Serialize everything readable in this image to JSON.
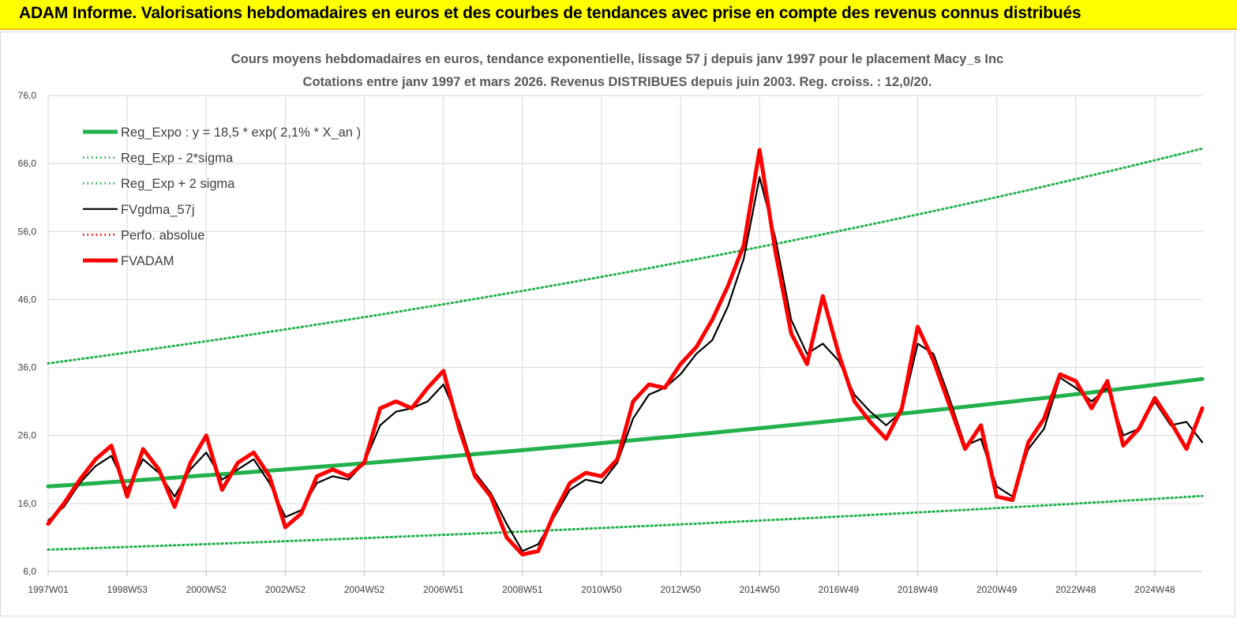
{
  "header": {
    "title": "ADAM Informe. Valorisations hebdomadaires en euros et des courbes de tendances avec prise en compte des revenus connus distribués",
    "background": "#ffff00"
  },
  "chart_data": {
    "type": "line",
    "title": "Cours moyens hebdomadaires en euros, tendance exponentielle, lissage 57 j depuis janv 1997 pour le placement Macy_s Inc",
    "subtitle": "Cotations entre janv 1997 et mars 2026. Revenus DISTRIBUES depuis juin 2003. Reg. croiss. : 12,0/20.",
    "xlabel": "",
    "ylabel": "",
    "ylim": [
      6,
      76
    ],
    "yticks": [
      "76,0",
      "66,0",
      "56,0",
      "46,0",
      "36,0",
      "26,0",
      "16,0",
      "6,0"
    ],
    "xlim": [
      1997.0,
      2026.2
    ],
    "xticks": [
      {
        "label": "1997W01",
        "t": 1997.0
      },
      {
        "label": "1998W53",
        "t": 1999.0
      },
      {
        "label": "2000W52",
        "t": 2001.0
      },
      {
        "label": "2002W52",
        "t": 2003.0
      },
      {
        "label": "2004W52",
        "t": 2005.0
      },
      {
        "label": "2006W51",
        "t": 2007.0
      },
      {
        "label": "2008W51",
        "t": 2009.0
      },
      {
        "label": "2010W50",
        "t": 2011.0
      },
      {
        "label": "2012W50",
        "t": 2013.0
      },
      {
        "label": "2014W50",
        "t": 2015.0
      },
      {
        "label": "2016W49",
        "t": 2017.0
      },
      {
        "label": "2018W49",
        "t": 2019.0
      },
      {
        "label": "2020W49",
        "t": 2021.0
      },
      {
        "label": "2022W48",
        "t": 2023.0
      },
      {
        "label": "2024W48",
        "t": 2025.0
      }
    ],
    "grid": true,
    "legend_position": "top-left",
    "series": [
      {
        "name": "Reg_Expo : y = 18,5 * exp( 2,1% *  X_an )",
        "color": "#22b14c",
        "style": "solid-thick",
        "x": [
          1997.0,
          2026.2
        ],
        "values": [
          18.5,
          34.3
        ]
      },
      {
        "name": "Reg_Exp - 2*sigma",
        "color": "#22b14c",
        "style": "dotted",
        "x": [
          1997.0,
          2026.2
        ],
        "values": [
          9.2,
          17.1
        ]
      },
      {
        "name": "Reg_Exp + 2 sigma",
        "color": "#22b14c",
        "style": "dotted",
        "x": [
          1997.0,
          2026.2
        ],
        "values": [
          36.6,
          68.2
        ]
      },
      {
        "name": "FVgdma_57j",
        "color": "#000000",
        "style": "solid",
        "x": [
          1997.0,
          1997.4,
          1997.8,
          1998.2,
          1998.6,
          1999.0,
          1999.4,
          1999.8,
          2000.2,
          2000.6,
          2001.0,
          2001.4,
          2001.8,
          2002.2,
          2002.6,
          2003.0,
          2003.4,
          2003.8,
          2004.2,
          2004.6,
          2005.0,
          2005.4,
          2005.8,
          2006.2,
          2006.6,
          2007.0,
          2007.4,
          2007.8,
          2008.2,
          2008.6,
          2009.0,
          2009.4,
          2009.8,
          2010.2,
          2010.6,
          2011.0,
          2011.4,
          2011.8,
          2012.2,
          2012.6,
          2013.0,
          2013.4,
          2013.8,
          2014.2,
          2014.6,
          2015.0,
          2015.4,
          2015.8,
          2016.2,
          2016.6,
          2017.0,
          2017.4,
          2017.8,
          2018.2,
          2018.6,
          2019.0,
          2019.4,
          2019.8,
          2020.2,
          2020.6,
          2021.0,
          2021.4,
          2021.8,
          2022.2,
          2022.6,
          2023.0,
          2023.4,
          2023.8,
          2024.2,
          2024.6,
          2025.0,
          2025.4,
          2025.8,
          2026.2
        ],
        "values": [
          13.5,
          15.5,
          19.0,
          21.5,
          23.0,
          18.0,
          22.5,
          20.5,
          17.0,
          21.0,
          23.5,
          19.5,
          21.0,
          22.5,
          19.0,
          14.0,
          15.0,
          19.0,
          20.0,
          19.5,
          22.0,
          27.5,
          29.5,
          30.0,
          31.0,
          33.5,
          28.0,
          20.5,
          17.5,
          13.0,
          9.0,
          10.0,
          14.0,
          18.0,
          19.5,
          19.0,
          22.0,
          28.5,
          32.0,
          33.0,
          35.0,
          38.0,
          40.0,
          45.0,
          52.0,
          64.0,
          55.0,
          43.0,
          38.0,
          39.5,
          37.0,
          32.0,
          29.5,
          27.5,
          29.5,
          39.5,
          38.0,
          31.5,
          24.5,
          25.5,
          18.5,
          17.0,
          24.0,
          27.0,
          34.5,
          33.0,
          31.0,
          33.0,
          26.0,
          27.0,
          31.0,
          27.5,
          28.0,
          25.0
        ]
      },
      {
        "name": "Perfo. absolue",
        "color": "#ff0000",
        "style": "dotted",
        "x": [],
        "values": []
      },
      {
        "name": "FVADAM",
        "color": "#ff0000",
        "style": "solid-thick",
        "x": [
          1997.0,
          1997.4,
          1997.8,
          1998.2,
          1998.6,
          1999.0,
          1999.4,
          1999.8,
          2000.2,
          2000.6,
          2001.0,
          2001.4,
          2001.8,
          2002.2,
          2002.6,
          2003.0,
          2003.4,
          2003.8,
          2004.2,
          2004.6,
          2005.0,
          2005.4,
          2005.8,
          2006.2,
          2006.6,
          2007.0,
          2007.4,
          2007.8,
          2008.2,
          2008.6,
          2009.0,
          2009.4,
          2009.8,
          2010.2,
          2010.6,
          2011.0,
          2011.4,
          2011.8,
          2012.2,
          2012.6,
          2013.0,
          2013.4,
          2013.8,
          2014.2,
          2014.6,
          2015.0,
          2015.4,
          2015.8,
          2016.2,
          2016.6,
          2017.0,
          2017.4,
          2017.8,
          2018.2,
          2018.6,
          2019.0,
          2019.4,
          2019.8,
          2020.2,
          2020.6,
          2021.0,
          2021.4,
          2021.8,
          2022.2,
          2022.6,
          2023.0,
          2023.4,
          2023.8,
          2024.2,
          2024.6,
          2025.0,
          2025.4,
          2025.8,
          2026.2
        ],
        "values": [
          13.0,
          16.0,
          19.5,
          22.5,
          24.5,
          17.0,
          24.0,
          21.0,
          15.5,
          22.0,
          26.0,
          18.0,
          22.0,
          23.5,
          20.0,
          12.5,
          14.5,
          20.0,
          21.0,
          20.0,
          22.0,
          30.0,
          31.0,
          30.0,
          33.0,
          35.5,
          27.0,
          20.0,
          17.0,
          11.0,
          8.5,
          9.0,
          14.5,
          19.0,
          20.5,
          20.0,
          22.5,
          31.0,
          33.5,
          33.0,
          36.5,
          39.0,
          43.0,
          48.0,
          54.0,
          68.0,
          53.0,
          41.0,
          36.5,
          46.5,
          38.0,
          31.0,
          28.0,
          25.5,
          30.0,
          42.0,
          37.0,
          30.5,
          24.0,
          27.5,
          17.0,
          16.5,
          25.0,
          28.5,
          35.0,
          34.0,
          30.0,
          34.0,
          24.5,
          27.0,
          31.5,
          28.0,
          24.0,
          30.0
        ]
      }
    ]
  }
}
